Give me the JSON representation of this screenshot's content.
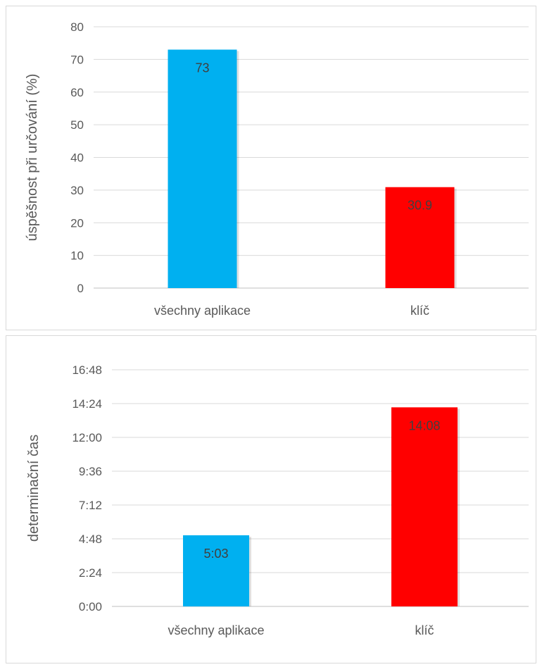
{
  "chart_data": [
    {
      "type": "bar",
      "categories": [
        "všechny aplikace",
        "klíč"
      ],
      "values": [
        73,
        30.9
      ],
      "data_labels": [
        "73",
        "30.9"
      ],
      "ylabel": "úspěšnost při určování (%)",
      "ylim": [
        0,
        80
      ],
      "yticks": [
        0,
        10,
        20,
        30,
        40,
        50,
        60,
        70,
        80
      ],
      "ytick_labels": [
        "0",
        "10",
        "20",
        "30",
        "40",
        "50",
        "60",
        "70",
        "80"
      ],
      "colors": [
        "#00B0F0",
        "#FF0000"
      ],
      "grid": true,
      "legend": "none"
    },
    {
      "type": "bar",
      "categories": [
        "všechny aplikace",
        "klíč"
      ],
      "values": [
        303,
        848
      ],
      "value_unit": "seconds",
      "data_labels": [
        "5:03",
        "14:08"
      ],
      "ylabel": "determinační čas",
      "ylim": [
        0,
        1008
      ],
      "yticks": [
        0,
        144,
        288,
        432,
        576,
        720,
        864,
        1008
      ],
      "ytick_labels": [
        "0:00",
        "2:24",
        "4:48",
        "7:12",
        "9:36",
        "12:00",
        "14:24",
        "16:48"
      ],
      "colors": [
        "#00B0F0",
        "#FF0000"
      ],
      "grid": true,
      "legend": "none"
    }
  ]
}
